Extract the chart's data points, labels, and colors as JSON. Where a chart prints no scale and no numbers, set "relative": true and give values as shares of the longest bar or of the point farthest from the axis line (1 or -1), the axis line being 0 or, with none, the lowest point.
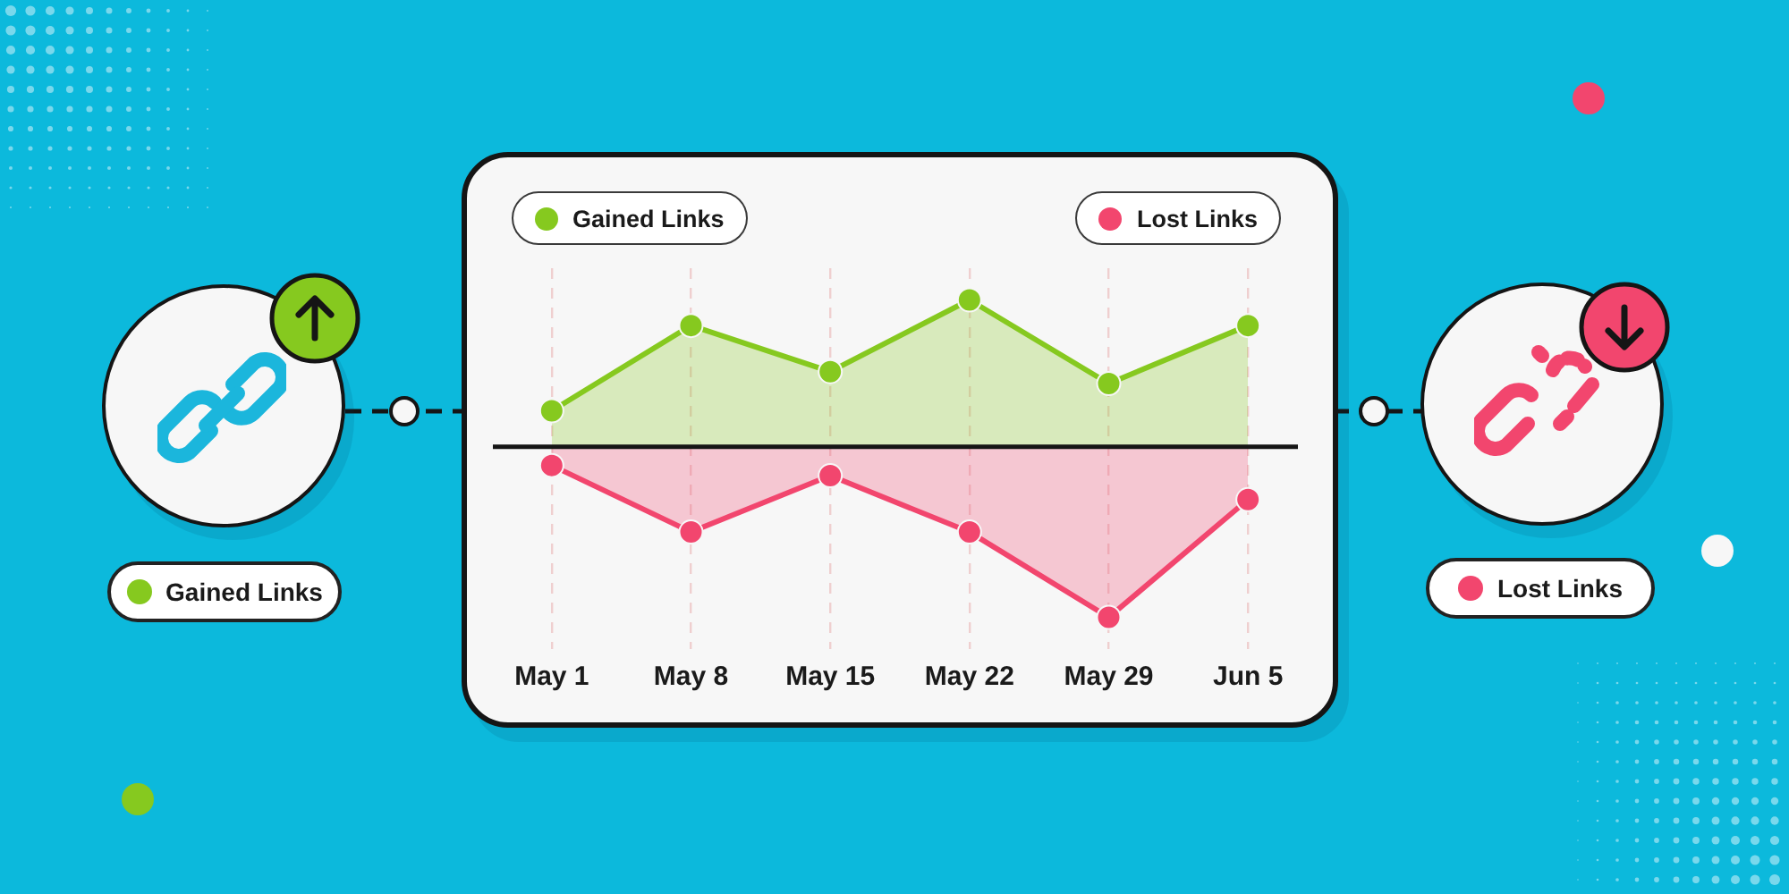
{
  "chart_data": {
    "type": "area",
    "categories": [
      "May 1",
      "May 8",
      "May 15",
      "May 22",
      "May 29",
      "Jun 5"
    ],
    "relative": true,
    "series": [
      {
        "name": "Gained Links",
        "color": "#86c91f",
        "values": [
          0.21,
          0.71,
          0.44,
          0.86,
          0.37,
          0.71
        ]
      },
      {
        "name": "Lost Links",
        "color": "#f2466e",
        "values": [
          -0.11,
          -0.5,
          -0.17,
          -0.5,
          -1,
          -0.31
        ]
      }
    ],
    "marker": "circle",
    "grid": "x",
    "legend": "top"
  }
}
